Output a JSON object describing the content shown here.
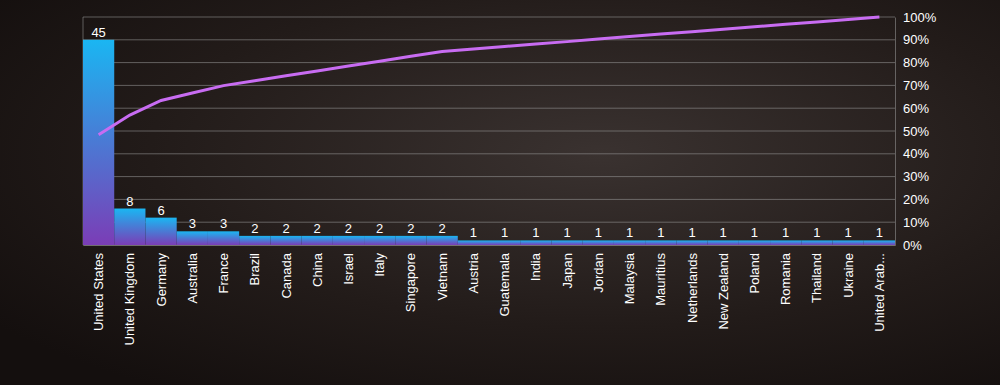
{
  "chart_data": {
    "type": "bar",
    "categories": [
      "United States",
      "United Kingdom",
      "Germany",
      "Australia",
      "France",
      "Brazil",
      "Canada",
      "China",
      "Israel",
      "Italy",
      "Singapore",
      "Vietnam",
      "Austria",
      "Guatemala",
      "India",
      "Japan",
      "Jordan",
      "Malaysia",
      "Mauritius",
      "Netherlands",
      "New Zealand",
      "Poland",
      "Romania",
      "Thailand",
      "Ukraine",
      "United Arab..."
    ],
    "series": [
      {
        "type": "bar",
        "color": "#1ab6f2",
        "data_labels": true,
        "values": [
          45,
          8,
          6,
          3,
          3,
          2,
          2,
          2,
          2,
          2,
          2,
          2,
          1,
          1,
          1,
          1,
          1,
          1,
          1,
          1,
          1,
          1,
          1,
          1,
          1,
          1
        ]
      },
      {
        "type": "line",
        "axis": "y2",
        "color": "#c86cf2",
        "line_style": "solid",
        "values": [
          48.4,
          57.0,
          63.4,
          66.7,
          69.9,
          72.0,
          74.2,
          76.3,
          78.5,
          80.6,
          82.8,
          84.9,
          86.0,
          87.1,
          88.2,
          89.2,
          90.3,
          91.4,
          92.5,
          93.5,
          94.6,
          95.7,
          96.8,
          97.8,
          98.9,
          100.0
        ]
      }
    ],
    "ylim": [
      0,
      50
    ],
    "y2lim": [
      0,
      100
    ],
    "y2ticks": [
      {
        "value": 0,
        "label": "0%"
      },
      {
        "value": 10,
        "label": "10%"
      },
      {
        "value": 20,
        "label": "20%"
      },
      {
        "value": 30,
        "label": "30%"
      },
      {
        "value": 40,
        "label": "40%"
      },
      {
        "value": 50,
        "label": "50%"
      },
      {
        "value": 60,
        "label": "60%"
      },
      {
        "value": 70,
        "label": "70%"
      },
      {
        "value": 80,
        "label": "80%"
      },
      {
        "value": 90,
        "label": "90%"
      },
      {
        "value": 100,
        "label": "100%"
      }
    ],
    "grid": true
  }
}
